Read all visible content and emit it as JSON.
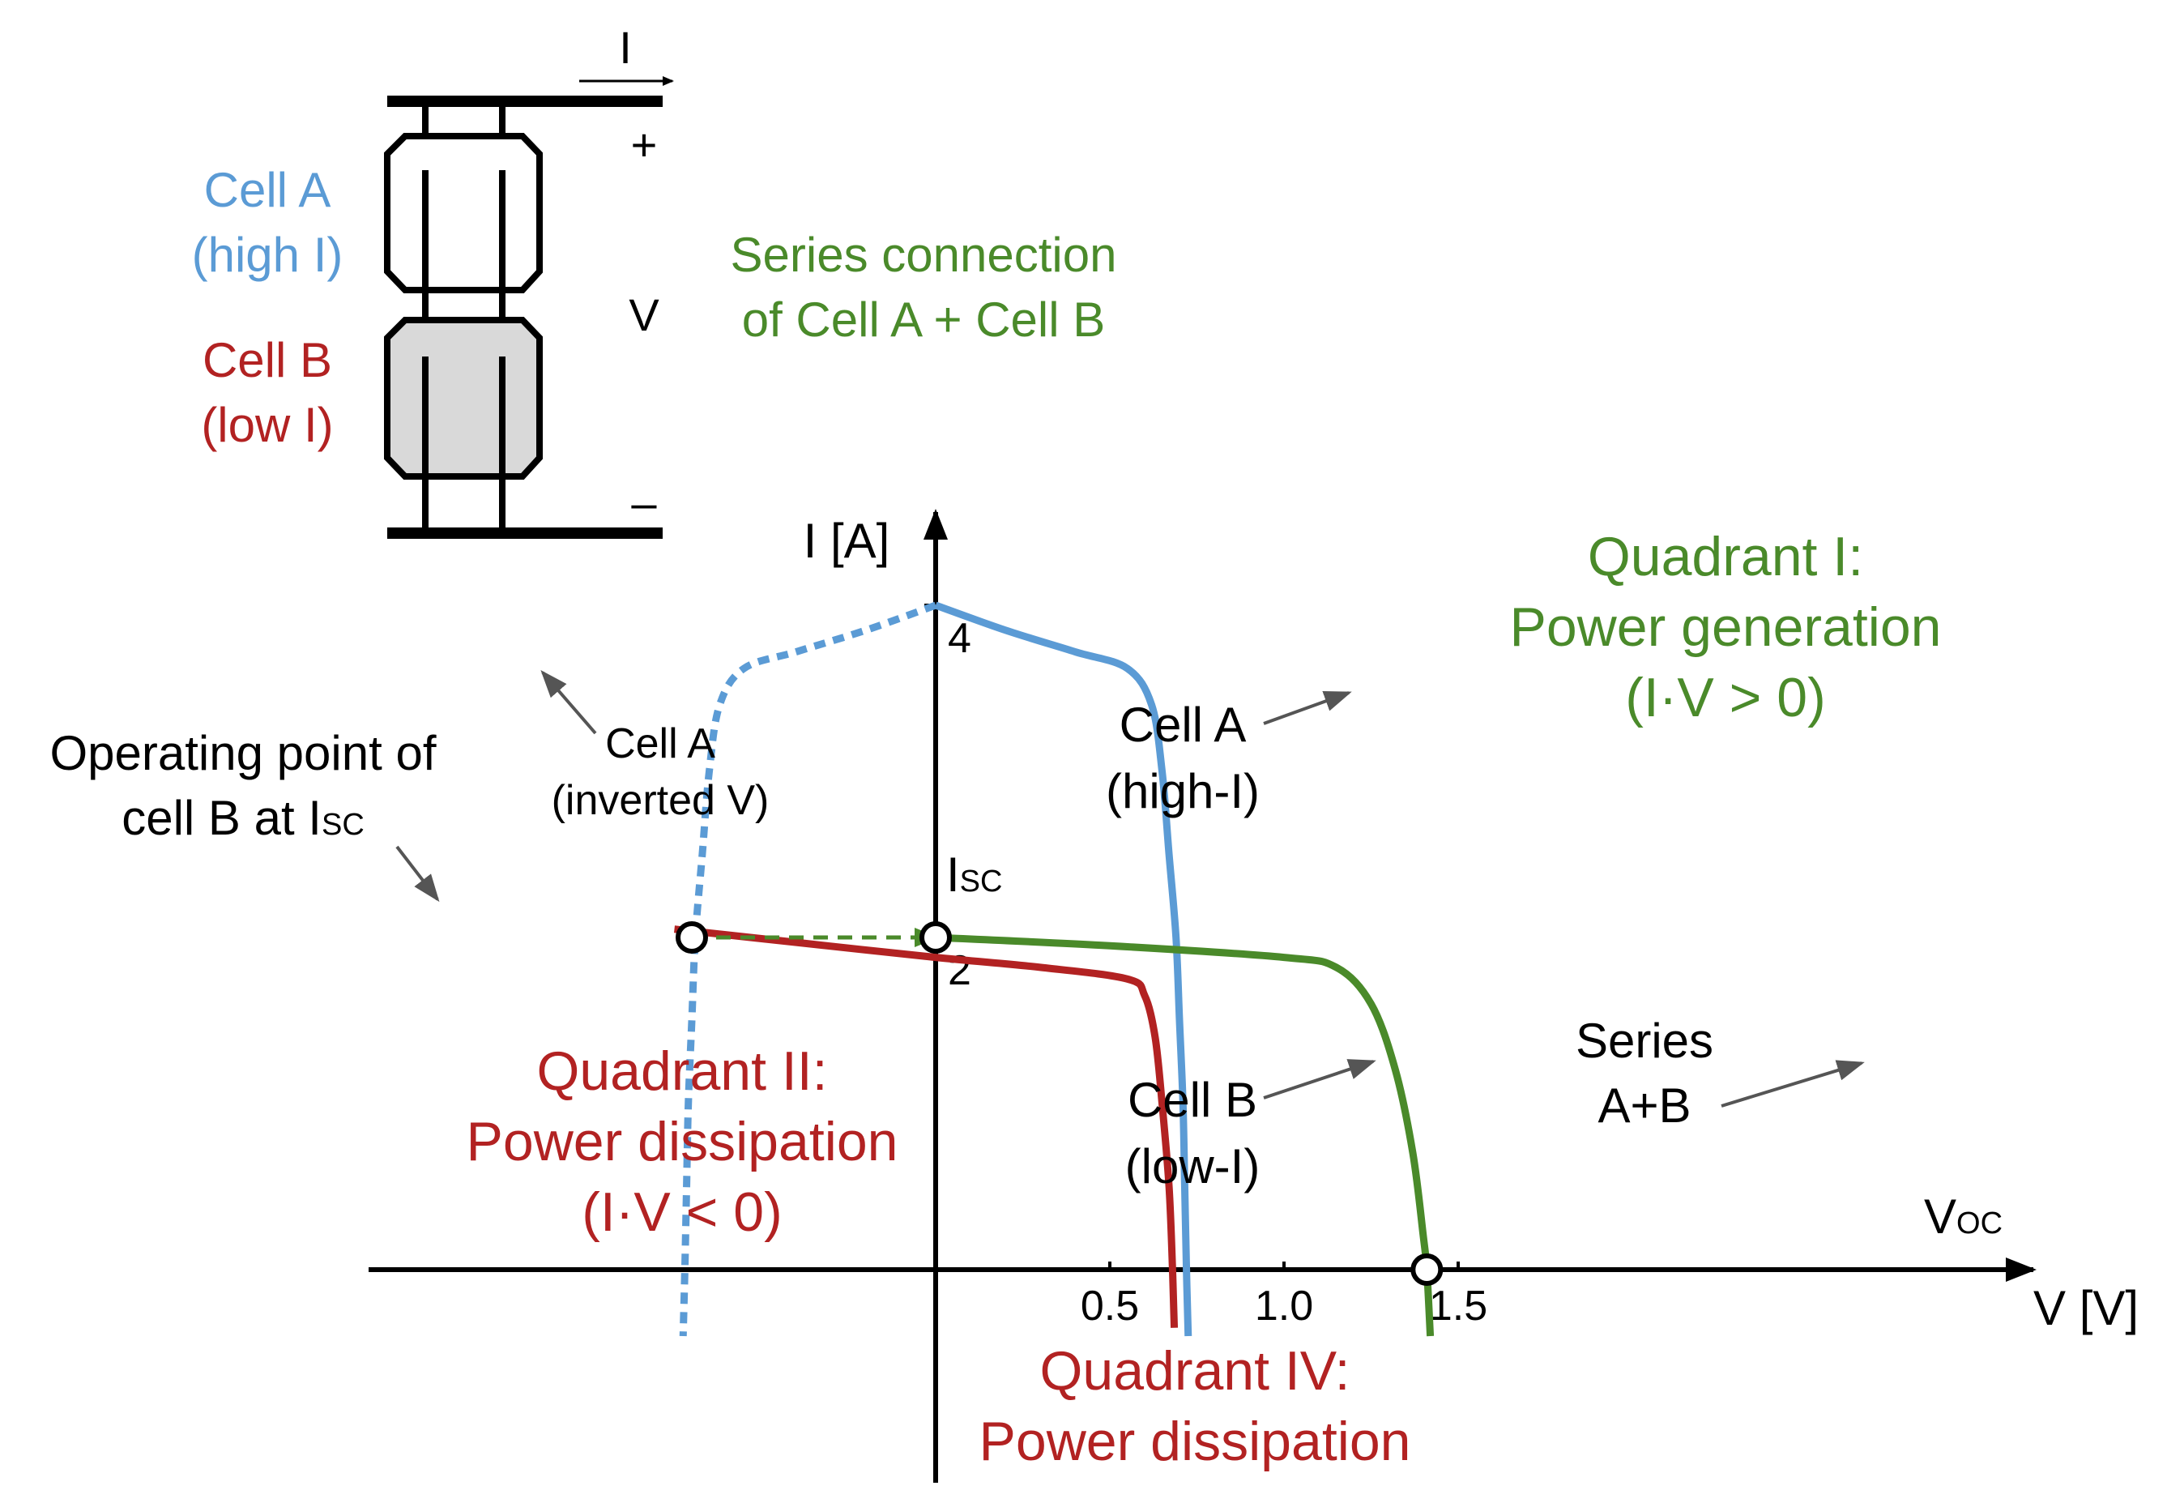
{
  "colors": {
    "cell_a": "#5b9bd5",
    "cell_b": "#b22222",
    "series": "#4a8a2a",
    "axis": "#000000",
    "shaded_cell": "#d9d9d9",
    "annot_arrow": "#555555"
  },
  "schematic": {
    "current_label": "I",
    "plus_label": "+",
    "minus_label": "–",
    "voltage_label": "V",
    "cell_a_label_line1": "Cell A",
    "cell_a_label_line2": "(high I)",
    "cell_b_label_line1": "Cell B",
    "cell_b_label_line2": "(low I)",
    "series_label_line1": "Series connection",
    "series_label_line2": "of Cell A + Cell B"
  },
  "chart_data": {
    "type": "line",
    "xlabel": "V [V]",
    "ylabel": "I [A]",
    "xlim": [
      -0.82,
      1.6
    ],
    "ylim": [
      -1.3,
      4.6
    ],
    "x_ticks": [
      0.5,
      1.0,
      1.5
    ],
    "x_tick_labels": [
      "0.5",
      "1.0",
      "1.5"
    ],
    "y_ticks": [
      2,
      4
    ],
    "y_tick_labels": [
      "2",
      "4"
    ],
    "series": [
      {
        "name": "Cell A (high-I)",
        "color": "#5b9bd5",
        "dashed": false,
        "points": [
          [
            0.0,
            4.0
          ],
          [
            0.2,
            3.85
          ],
          [
            0.4,
            3.72
          ],
          [
            0.55,
            3.62
          ],
          [
            0.62,
            3.4
          ],
          [
            0.65,
            3.0
          ],
          [
            0.67,
            2.5
          ],
          [
            0.69,
            2.0
          ],
          [
            0.7,
            1.5
          ],
          [
            0.71,
            1.0
          ],
          [
            0.715,
            0.5
          ],
          [
            0.72,
            0.0
          ],
          [
            0.725,
            -0.4
          ]
        ]
      },
      {
        "name": "Cell A (inverted V)",
        "color": "#5b9bd5",
        "dashed": true,
        "points": [
          [
            0.0,
            4.0
          ],
          [
            -0.2,
            3.85
          ],
          [
            -0.4,
            3.72
          ],
          [
            -0.55,
            3.62
          ],
          [
            -0.62,
            3.4
          ],
          [
            -0.65,
            3.0
          ],
          [
            -0.67,
            2.5
          ],
          [
            -0.69,
            2.0
          ],
          [
            -0.7,
            1.5
          ],
          [
            -0.71,
            1.0
          ],
          [
            -0.715,
            0.5
          ],
          [
            -0.72,
            0.0
          ],
          [
            -0.725,
            -0.4
          ]
        ]
      },
      {
        "name": "Cell B (low-I)",
        "color": "#b22222",
        "dashed": false,
        "points": [
          [
            -0.75,
            2.05
          ],
          [
            -0.4,
            1.97
          ],
          [
            0.0,
            1.88
          ],
          [
            0.3,
            1.82
          ],
          [
            0.55,
            1.75
          ],
          [
            0.6,
            1.65
          ],
          [
            0.63,
            1.4
          ],
          [
            0.65,
            1.0
          ],
          [
            0.67,
            0.5
          ],
          [
            0.68,
            0.0
          ],
          [
            0.685,
            -0.35
          ]
        ]
      },
      {
        "name": "Series A+B",
        "color": "#4a8a2a",
        "dashed": false,
        "points": [
          [
            0.0,
            2.0
          ],
          [
            0.5,
            1.95
          ],
          [
            1.0,
            1.88
          ],
          [
            1.15,
            1.82
          ],
          [
            1.25,
            1.6
          ],
          [
            1.32,
            1.2
          ],
          [
            1.37,
            0.7
          ],
          [
            1.4,
            0.2
          ],
          [
            1.41,
            0.0
          ],
          [
            1.42,
            -0.4
          ]
        ]
      },
      {
        "name": "Operating shift",
        "color": "#4a8a2a",
        "dashed": true,
        "points": [
          [
            -0.7,
            2.0
          ],
          [
            0.0,
            2.0
          ]
        ]
      }
    ],
    "markers": [
      {
        "name": "Operating point of cell B at ISC",
        "x": -0.7,
        "y": 2.0
      },
      {
        "name": "ISC",
        "x": 0.0,
        "y": 2.0
      },
      {
        "name": "VOC",
        "x": 1.41,
        "y": 0.0
      }
    ],
    "annotations": {
      "isc_main": "I",
      "isc_sub": "SC",
      "voc_main": "V",
      "voc_sub": "OC",
      "op_point_line1": "Operating point of",
      "op_point_line2_main": "cell B at I",
      "op_point_line2_sub": "SC",
      "cell_a_inv_line1": "Cell A",
      "cell_a_inv_line2": "(inverted V)",
      "cell_a_line1": "Cell A",
      "cell_a_line2": "(high-I)",
      "cell_b_line1": "Cell B",
      "cell_b_line2": "(low-I)",
      "series_line1": "Series",
      "series_line2": "A+B",
      "q1_line1": "Quadrant I:",
      "q1_line2": "Power generation",
      "q1_line3": "(I·V > 0)",
      "q2_line1": "Quadrant II:",
      "q2_line2": "Power dissipation",
      "q2_line3": "(I·V < 0)",
      "q4_line1": "Quadrant IV:",
      "q4_line2": "Power dissipation"
    }
  }
}
